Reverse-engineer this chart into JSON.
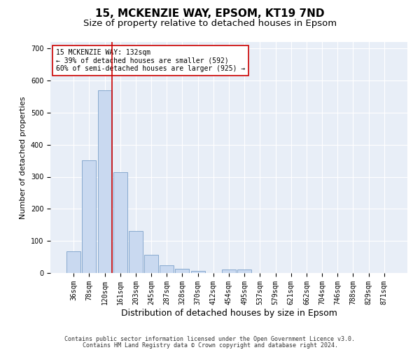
{
  "title": "15, MCKENZIE WAY, EPSOM, KT19 7ND",
  "subtitle": "Size of property relative to detached houses in Epsom",
  "xlabel": "Distribution of detached houses by size in Epsom",
  "ylabel": "Number of detached properties",
  "categories": [
    "36sqm",
    "78sqm",
    "120sqm",
    "161sqm",
    "203sqm",
    "245sqm",
    "287sqm",
    "328sqm",
    "370sqm",
    "412sqm",
    "454sqm",
    "495sqm",
    "537sqm",
    "579sqm",
    "621sqm",
    "662sqm",
    "704sqm",
    "746sqm",
    "788sqm",
    "829sqm",
    "871sqm"
  ],
  "bar_heights": [
    68,
    352,
    570,
    315,
    130,
    57,
    25,
    14,
    7,
    0,
    10,
    10,
    0,
    0,
    0,
    0,
    0,
    0,
    0,
    0,
    0
  ],
  "bar_color": "#c9d9f0",
  "bar_edge_color": "#7aa0c8",
  "vline_pos": 2.47,
  "vline_color": "#cc0000",
  "annotation_text": "15 MCKENZIE WAY: 132sqm\n← 39% of detached houses are smaller (592)\n60% of semi-detached houses are larger (925) →",
  "annotation_box_color": "#ffffff",
  "annotation_box_edge": "#cc0000",
  "ylim": [
    0,
    720
  ],
  "yticks": [
    0,
    100,
    200,
    300,
    400,
    500,
    600,
    700
  ],
  "background_color": "#e8eef7",
  "grid_color": "#ffffff",
  "footer_line1": "Contains HM Land Registry data © Crown copyright and database right 2024.",
  "footer_line2": "Contains public sector information licensed under the Open Government Licence v3.0.",
  "title_fontsize": 11,
  "subtitle_fontsize": 9.5,
  "xlabel_fontsize": 9,
  "ylabel_fontsize": 8,
  "tick_fontsize": 7,
  "annot_fontsize": 7,
  "footer_fontsize": 6
}
